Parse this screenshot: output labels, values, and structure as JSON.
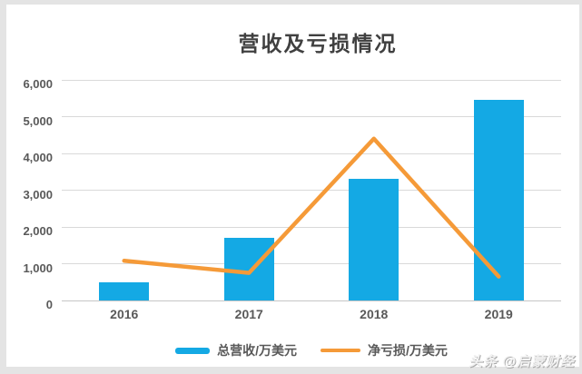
{
  "watermark": {
    "text": "头条 @启蒙财经"
  },
  "chart_data": {
    "type": "bar",
    "subtype": "combo-bar-line",
    "title": "营收及亏损情况",
    "categories": [
      "2016",
      "2017",
      "2018",
      "2019"
    ],
    "series": [
      {
        "name": "总营收/万美元",
        "type": "bar",
        "color": "#14a9e4",
        "values": [
          500,
          1700,
          3300,
          5450
        ]
      },
      {
        "name": "净亏损/万美元",
        "type": "line",
        "color": "#f59a38",
        "values": [
          1080,
          750,
          4400,
          650
        ]
      }
    ],
    "xlabel": "",
    "ylabel": "",
    "ylim": [
      0,
      6000
    ],
    "ytick_interval": 1000,
    "ytick_labels": [
      "0",
      "1,000",
      "2,000",
      "3,000",
      "4,000",
      "5,000",
      "6,000"
    ],
    "grid": true,
    "legend_position": "bottom",
    "colors": {
      "grid": "#d9d9d9",
      "axis_text": "#595959",
      "title_text": "#404040",
      "frame": "#e4e4e4"
    }
  }
}
